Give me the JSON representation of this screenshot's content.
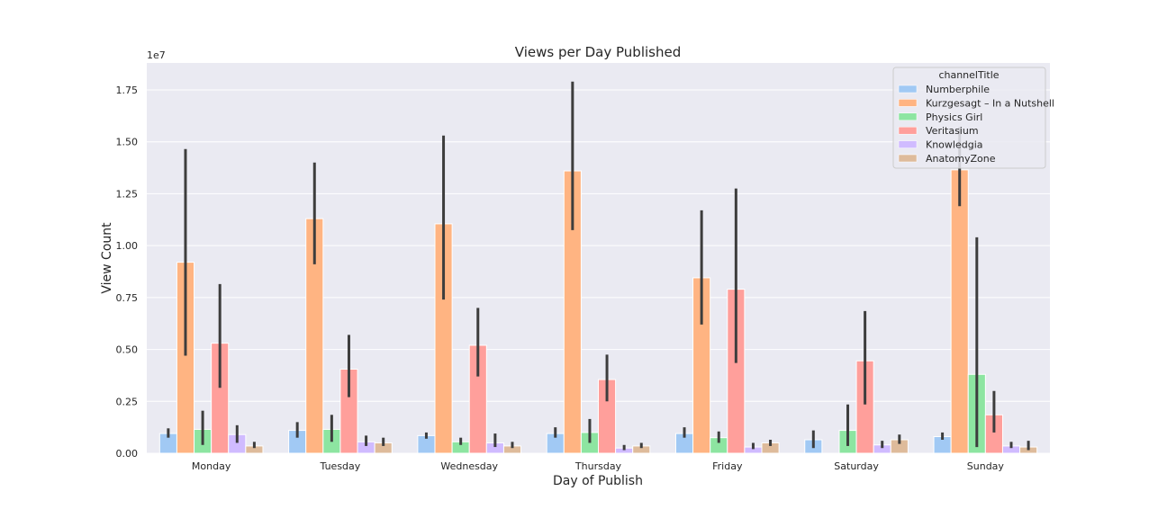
{
  "chart_data": {
    "type": "bar",
    "title": "Views per Day Published",
    "xlabel": "Day of Publish",
    "ylabel": "View Count",
    "y_scale_label": "1e7",
    "categories": [
      "Monday",
      "Tuesday",
      "Wednesday",
      "Thursday",
      "Friday",
      "Saturday",
      "Sunday"
    ],
    "ylim": [
      0,
      1.88
    ],
    "yticks": [
      "0.00",
      "0.25",
      "0.50",
      "0.75",
      "1.00",
      "1.25",
      "1.50",
      "1.75"
    ],
    "grid": true,
    "legend": {
      "title": "channelTitle",
      "placement": "top-right"
    },
    "series": [
      {
        "name": "Numberphile",
        "color": "#a1c9f4",
        "values": [
          0.095,
          0.11,
          0.085,
          0.095,
          0.095,
          0.065,
          0.08
        ],
        "err_low": [
          0.075,
          0.075,
          0.07,
          0.075,
          0.075,
          0.025,
          0.065
        ],
        "err_high": [
          0.12,
          0.15,
          0.1,
          0.125,
          0.125,
          0.11,
          0.1
        ]
      },
      {
        "name": "Kurzgesagt – In a Nutshell",
        "color": "#ffb482",
        "values": [
          0.92,
          1.13,
          1.105,
          1.36,
          0.845,
          null,
          1.365
        ],
        "err_low": [
          0.47,
          0.91,
          0.74,
          1.075,
          0.62,
          null,
          1.19
        ],
        "err_high": [
          1.465,
          1.4,
          1.53,
          1.79,
          1.17,
          null,
          1.57
        ]
      },
      {
        "name": "Physics Girl",
        "color": "#8de5a1",
        "values": [
          0.115,
          0.115,
          0.055,
          0.1,
          0.075,
          0.11,
          0.38
        ],
        "err_low": [
          0.04,
          0.055,
          0.04,
          0.05,
          0.05,
          0.035,
          0.03
        ],
        "err_high": [
          0.205,
          0.185,
          0.075,
          0.165,
          0.105,
          0.235,
          1.04
        ]
      },
      {
        "name": "Veritasium",
        "color": "#ff9f9b",
        "values": [
          0.53,
          0.405,
          0.52,
          0.355,
          0.79,
          0.445,
          0.185
        ],
        "err_low": [
          0.315,
          0.27,
          0.37,
          0.25,
          0.435,
          0.235,
          0.1
        ],
        "err_high": [
          0.815,
          0.57,
          0.7,
          0.475,
          1.275,
          0.685,
          0.3
        ]
      },
      {
        "name": "Knowledgia",
        "color": "#d0bbff",
        "values": [
          0.09,
          0.055,
          0.05,
          0.025,
          0.03,
          0.04,
          0.035
        ],
        "err_low": [
          0.05,
          0.035,
          0.03,
          0.015,
          0.02,
          0.025,
          0.025
        ],
        "err_high": [
          0.135,
          0.085,
          0.095,
          0.04,
          0.05,
          0.06,
          0.055
        ]
      },
      {
        "name": "AnatomyZone",
        "color": "#debb9b",
        "values": [
          0.035,
          0.05,
          0.035,
          0.035,
          0.05,
          0.065,
          0.03
        ],
        "err_low": [
          0.025,
          0.035,
          0.025,
          0.025,
          0.035,
          0.045,
          0.015
        ],
        "err_high": [
          0.055,
          0.075,
          0.055,
          0.05,
          0.065,
          0.09,
          0.06
        ]
      }
    ]
  }
}
